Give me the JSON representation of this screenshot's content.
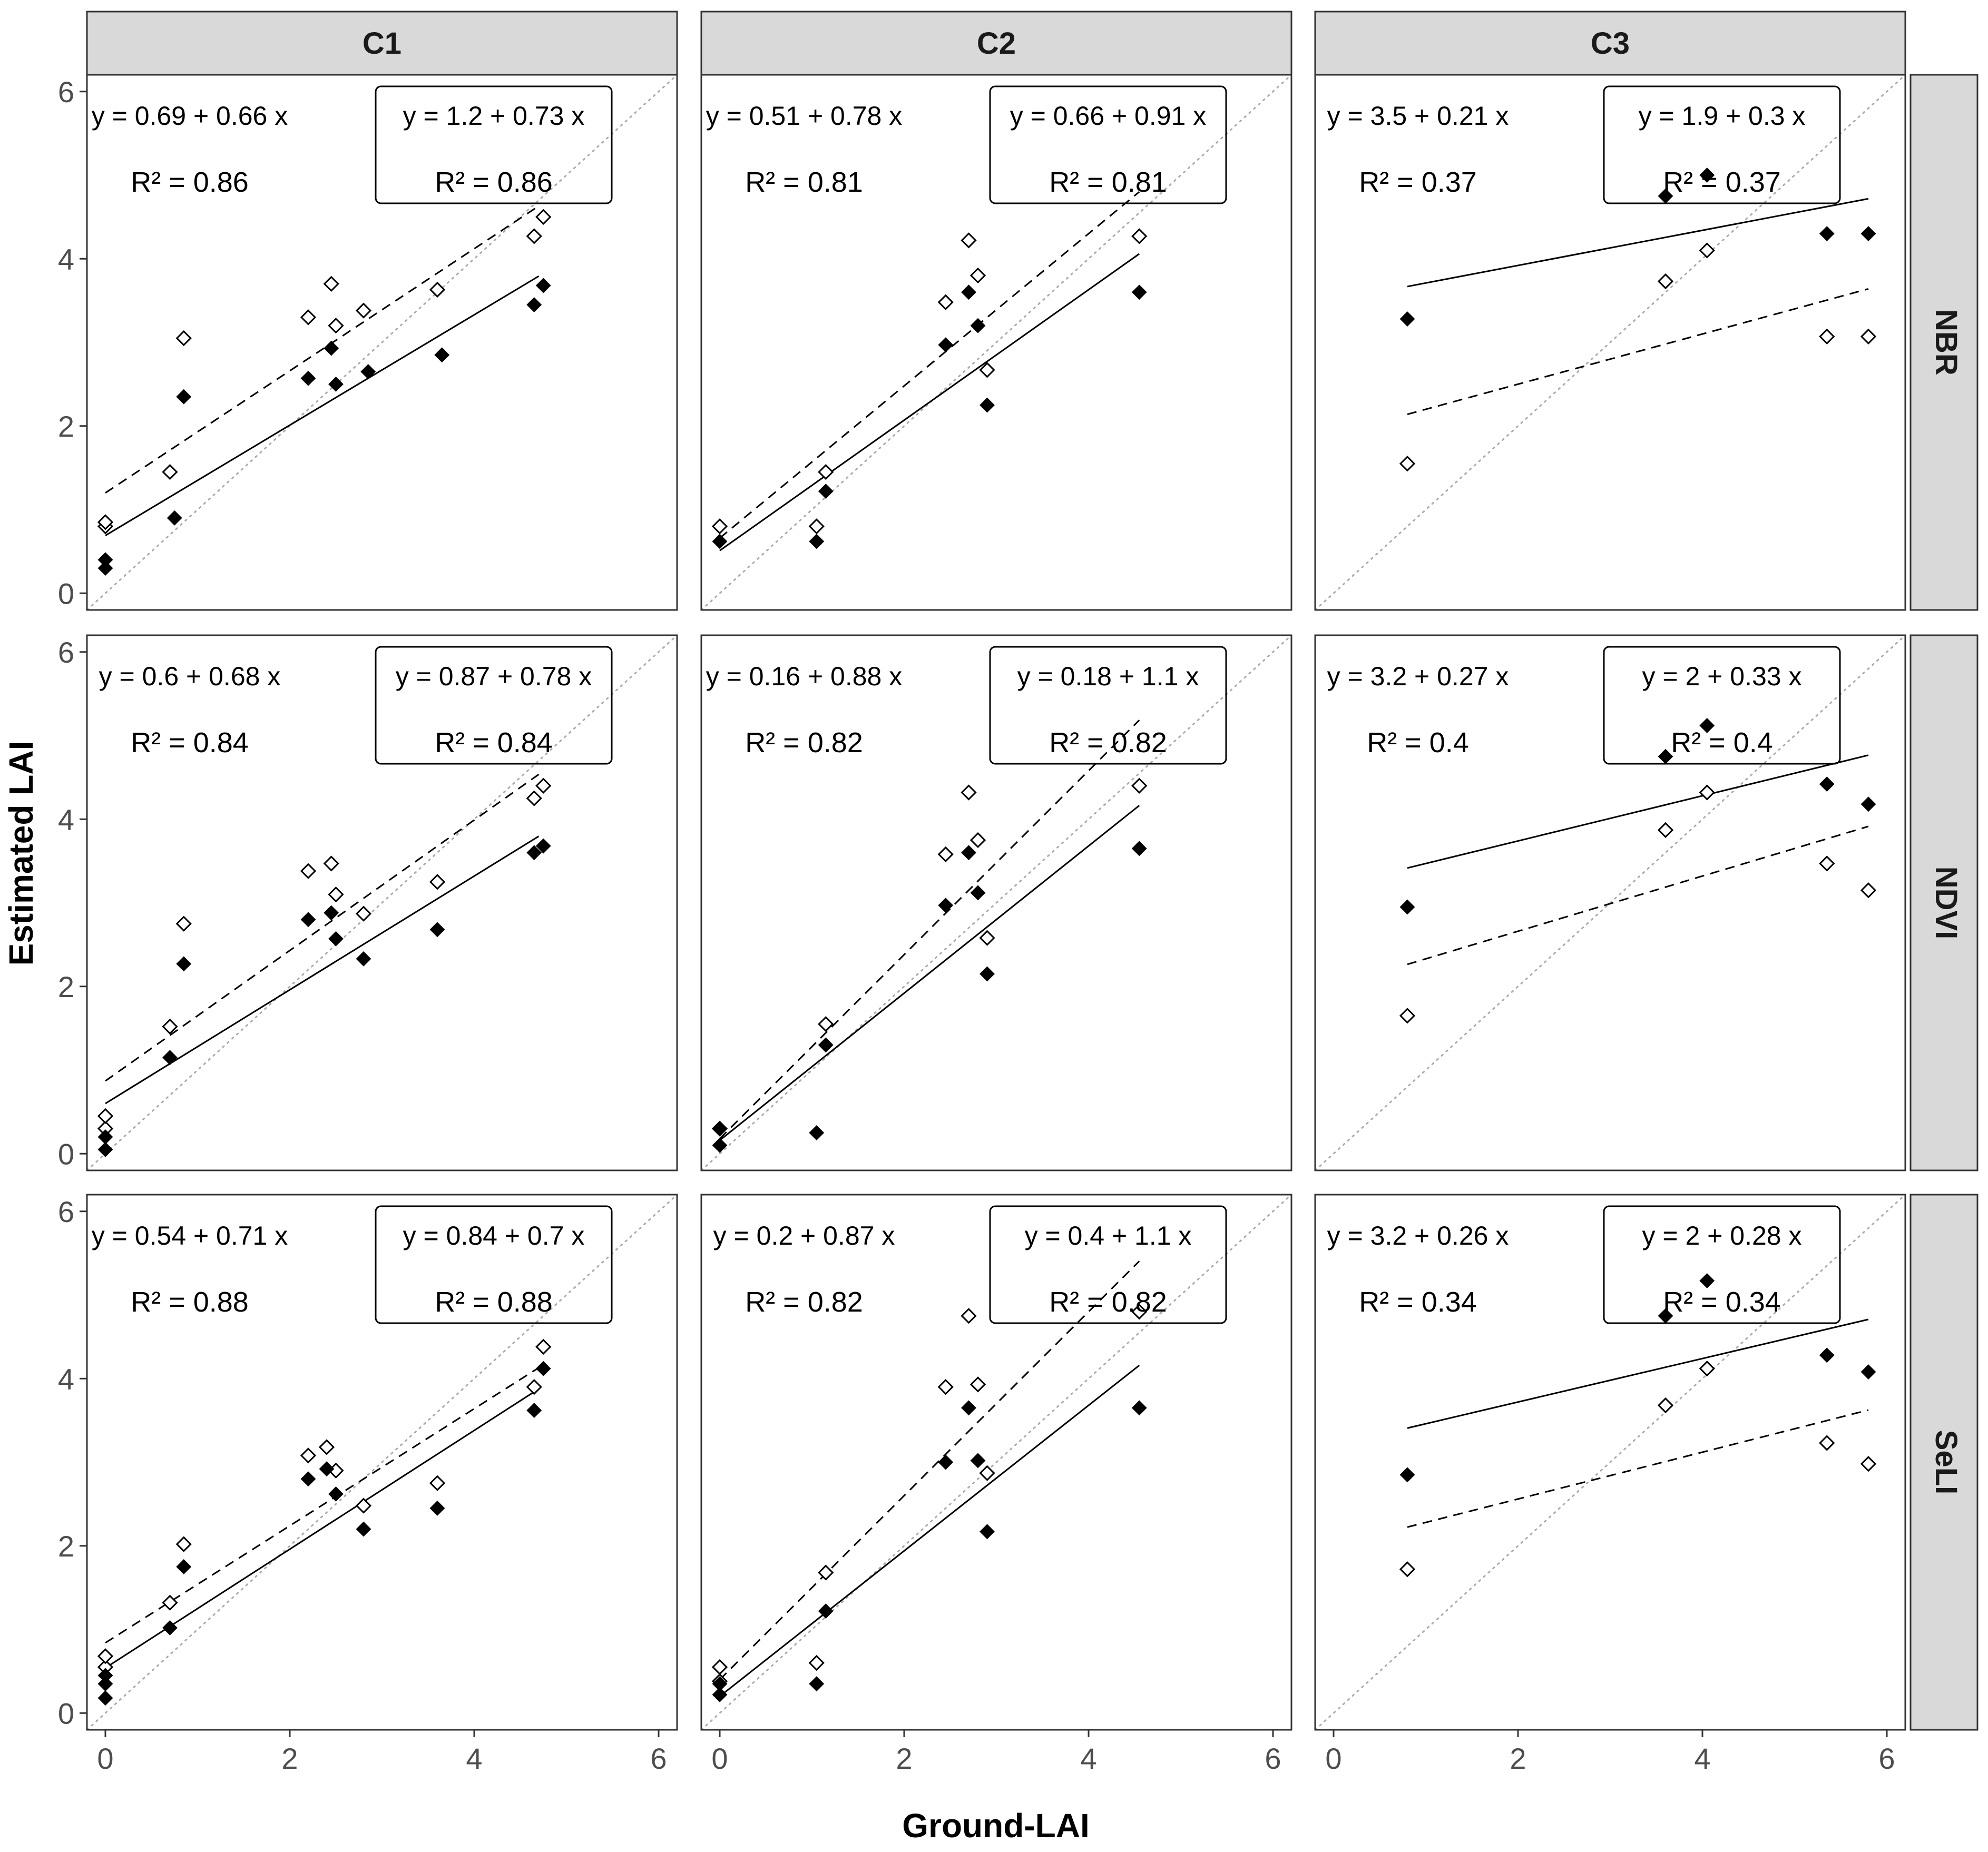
{
  "chart_data": {
    "type": "scatter",
    "title": "",
    "xlabel": "Ground-LAI",
    "ylabel": "Estimated LAI",
    "xlim": [
      -0.2,
      6.2
    ],
    "ylim": [
      -0.2,
      6.2
    ],
    "x_ticks": [
      "0",
      "2",
      "4",
      "6"
    ],
    "y_ticks": [
      "0",
      "2",
      "4",
      "6"
    ],
    "columns": [
      "C1",
      "C2",
      "C3"
    ],
    "rows": [
      "NBR",
      "NDVI",
      "SeLI"
    ],
    "reference_line": "1:1 (dotted)",
    "series_legend": [
      {
        "name": "filled markers",
        "line": "solid"
      },
      {
        "name": "open markers",
        "line": "dashed"
      }
    ],
    "panels": [
      {
        "col": "C1",
        "row": "NBR",
        "filled": {
          "eq": "y = 0.69 + 0.66 x",
          "r2": "0.86",
          "intercept": 0.69,
          "slope": 0.66,
          "xrange": [
            0,
            4.7
          ],
          "points": [
            [
              0,
              0.3
            ],
            [
              0,
              0.4
            ],
            [
              0.75,
              0.9
            ],
            [
              0.85,
              2.35
            ],
            [
              2.2,
              2.57
            ],
            [
              2.45,
              2.93
            ],
            [
              2.5,
              2.5
            ],
            [
              2.85,
              2.65
            ],
            [
              3.65,
              2.85
            ],
            [
              4.65,
              3.45
            ],
            [
              4.75,
              3.68
            ]
          ]
        },
        "open": {
          "eq": "y = 1.2 + 0.73 x",
          "r2": "0.86",
          "intercept": 1.2,
          "slope": 0.73,
          "xrange": [
            0,
            4.7
          ],
          "points": [
            [
              0,
              0.8
            ],
            [
              0,
              0.85
            ],
            [
              0.7,
              1.45
            ],
            [
              0.85,
              3.05
            ],
            [
              2.2,
              3.3
            ],
            [
              2.45,
              3.7
            ],
            [
              2.5,
              3.2
            ],
            [
              2.8,
              3.38
            ],
            [
              3.6,
              3.63
            ],
            [
              4.65,
              4.27
            ],
            [
              4.75,
              4.5
            ]
          ]
        }
      },
      {
        "col": "C2",
        "row": "NBR",
        "filled": {
          "eq": "y = 0.51 + 0.78 x",
          "r2": "0.81",
          "intercept": 0.51,
          "slope": 0.78,
          "xrange": [
            0,
            4.55
          ],
          "points": [
            [
              0,
              0.62
            ],
            [
              1.05,
              0.62
            ],
            [
              1.15,
              1.22
            ],
            [
              2.45,
              2.97
            ],
            [
              2.7,
              3.6
            ],
            [
              2.8,
              3.2
            ],
            [
              2.9,
              2.25
            ],
            [
              4.55,
              3.6
            ]
          ]
        },
        "open": {
          "eq": "y = 0.66 + 0.91 x",
          "r2": "0.81",
          "intercept": 0.66,
          "slope": 0.91,
          "xrange": [
            0,
            4.55
          ],
          "points": [
            [
              0,
              0.8
            ],
            [
              1.05,
              0.8
            ],
            [
              1.15,
              1.45
            ],
            [
              2.45,
              3.48
            ],
            [
              2.7,
              4.22
            ],
            [
              2.8,
              3.8
            ],
            [
              2.9,
              2.67
            ],
            [
              4.55,
              4.27
            ]
          ]
        }
      },
      {
        "col": "C3",
        "row": "NBR",
        "filled": {
          "eq": "y = 3.5 + 0.21 x",
          "r2": "0.37",
          "intercept": 3.5,
          "slope": 0.21,
          "xrange": [
            0.8,
            5.8
          ],
          "points": [
            [
              0.8,
              3.28
            ],
            [
              3.6,
              4.75
            ],
            [
              4.05,
              5.0
            ],
            [
              5.35,
              4.3
            ],
            [
              5.8,
              4.3
            ]
          ]
        },
        "open": {
          "eq": "y = 1.9 + 0.3 x",
          "r2": "0.37",
          "intercept": 1.9,
          "slope": 0.3,
          "xrange": [
            0.8,
            5.8
          ],
          "points": [
            [
              0.8,
              1.55
            ],
            [
              3.6,
              3.73
            ],
            [
              4.05,
              4.1
            ],
            [
              5.35,
              3.07
            ],
            [
              5.8,
              3.07
            ]
          ]
        }
      },
      {
        "col": "C1",
        "row": "NDVI",
        "filled": {
          "eq": "y = 0.6 + 0.68 x",
          "r2": "0.84",
          "intercept": 0.6,
          "slope": 0.68,
          "xrange": [
            0,
            4.7
          ],
          "points": [
            [
              0,
              0.05
            ],
            [
              0,
              0.2
            ],
            [
              0.7,
              1.15
            ],
            [
              0.85,
              2.27
            ],
            [
              2.2,
              2.8
            ],
            [
              2.45,
              2.88
            ],
            [
              2.5,
              2.57
            ],
            [
              2.8,
              2.33
            ],
            [
              3.6,
              2.68
            ],
            [
              4.65,
              3.6
            ],
            [
              4.75,
              3.68
            ]
          ]
        },
        "open": {
          "eq": "y = 0.87 + 0.78 x",
          "r2": "0.84",
          "intercept": 0.87,
          "slope": 0.78,
          "xrange": [
            0,
            4.7
          ],
          "points": [
            [
              0,
              0.3
            ],
            [
              0,
              0.45
            ],
            [
              0.7,
              1.52
            ],
            [
              0.85,
              2.75
            ],
            [
              2.2,
              3.38
            ],
            [
              2.45,
              3.47
            ],
            [
              2.5,
              3.1
            ],
            [
              2.8,
              2.87
            ],
            [
              3.6,
              3.25
            ],
            [
              4.65,
              4.25
            ],
            [
              4.75,
              4.4
            ]
          ]
        }
      },
      {
        "col": "C2",
        "row": "NDVI",
        "filled": {
          "eq": "y = 0.16 + 0.88 x",
          "r2": "0.82",
          "intercept": 0.16,
          "slope": 0.88,
          "xrange": [
            0,
            4.55
          ],
          "points": [
            [
              0,
              0.1
            ],
            [
              0,
              0.3
            ],
            [
              1.05,
              0.25
            ],
            [
              1.15,
              1.3
            ],
            [
              2.45,
              2.97
            ],
            [
              2.7,
              3.6
            ],
            [
              2.8,
              3.12
            ],
            [
              2.9,
              2.15
            ],
            [
              4.55,
              3.65
            ]
          ]
        },
        "open": {
          "eq": "y = 0.18 + 1.1 x",
          "r2": "0.82",
          "intercept": 0.18,
          "slope": 1.1,
          "xrange": [
            0,
            4.55
          ],
          "points": [
            [
              0,
              0.3
            ],
            [
              1.15,
              1.55
            ],
            [
              2.45,
              3.58
            ],
            [
              2.7,
              4.32
            ],
            [
              2.8,
              3.75
            ],
            [
              2.9,
              2.58
            ],
            [
              4.55,
              4.4
            ]
          ]
        }
      },
      {
        "col": "C3",
        "row": "NDVI",
        "filled": {
          "eq": "y = 3.2 + 0.27 x",
          "r2": "0.4",
          "intercept": 3.2,
          "slope": 0.27,
          "xrange": [
            0.8,
            5.8
          ],
          "points": [
            [
              0.8,
              2.95
            ],
            [
              3.6,
              4.75
            ],
            [
              4.05,
              5.12
            ],
            [
              5.35,
              4.42
            ],
            [
              5.8,
              4.18
            ]
          ]
        },
        "open": {
          "eq": "y = 2 + 0.33 x",
          "r2": "0.4",
          "intercept": 2.0,
          "slope": 0.33,
          "xrange": [
            0.8,
            5.8
          ],
          "points": [
            [
              0.8,
              1.65
            ],
            [
              3.6,
              3.87
            ],
            [
              4.05,
              4.32
            ],
            [
              5.35,
              3.47
            ],
            [
              5.8,
              3.15
            ]
          ]
        }
      },
      {
        "col": "C1",
        "row": "SeLI",
        "filled": {
          "eq": "y = 0.54 + 0.71 x",
          "r2": "0.88",
          "intercept": 0.54,
          "slope": 0.71,
          "xrange": [
            0,
            4.7
          ],
          "points": [
            [
              0,
              0.18
            ],
            [
              0,
              0.35
            ],
            [
              0,
              0.45
            ],
            [
              0.7,
              1.02
            ],
            [
              0.85,
              1.75
            ],
            [
              2.2,
              2.8
            ],
            [
              2.4,
              2.92
            ],
            [
              2.5,
              2.62
            ],
            [
              2.8,
              2.2
            ],
            [
              3.6,
              2.45
            ],
            [
              4.65,
              3.62
            ],
            [
              4.75,
              4.12
            ]
          ]
        },
        "open": {
          "eq": "y = 0.84 + 0.7 x",
          "r2": "0.88",
          "intercept": 0.84,
          "slope": 0.7,
          "xrange": [
            0,
            4.7
          ],
          "points": [
            [
              0,
              0.55
            ],
            [
              0,
              0.68
            ],
            [
              0.7,
              1.32
            ],
            [
              0.85,
              2.02
            ],
            [
              2.2,
              3.08
            ],
            [
              2.4,
              3.18
            ],
            [
              2.5,
              2.9
            ],
            [
              2.8,
              2.48
            ],
            [
              3.6,
              2.75
            ],
            [
              4.65,
              3.9
            ],
            [
              4.75,
              4.38
            ]
          ]
        }
      },
      {
        "col": "C2",
        "row": "SeLI",
        "filled": {
          "eq": "y = 0.2 + 0.87 x",
          "r2": "0.82",
          "intercept": 0.2,
          "slope": 0.87,
          "xrange": [
            0,
            4.55
          ],
          "points": [
            [
              0,
              0.22
            ],
            [
              0,
              0.35
            ],
            [
              1.05,
              0.35
            ],
            [
              1.15,
              1.22
            ],
            [
              2.45,
              3.0
            ],
            [
              2.7,
              3.65
            ],
            [
              2.8,
              3.02
            ],
            [
              2.9,
              2.17
            ],
            [
              4.55,
              3.65
            ]
          ]
        },
        "open": {
          "eq": "y = 0.4 + 1.1 x",
          "r2": "0.82",
          "intercept": 0.4,
          "slope": 1.1,
          "xrange": [
            0,
            4.55
          ],
          "points": [
            [
              0,
              0.38
            ],
            [
              0,
              0.55
            ],
            [
              1.05,
              0.6
            ],
            [
              1.15,
              1.68
            ],
            [
              2.45,
              3.9
            ],
            [
              2.7,
              4.75
            ],
            [
              2.8,
              3.93
            ],
            [
              2.9,
              2.87
            ],
            [
              4.55,
              4.8
            ]
          ]
        }
      },
      {
        "col": "C3",
        "row": "SeLI",
        "filled": {
          "eq": "y = 3.2 + 0.26 x",
          "r2": "0.34",
          "intercept": 3.2,
          "slope": 0.26,
          "xrange": [
            0.8,
            5.8
          ],
          "points": [
            [
              0.8,
              2.85
            ],
            [
              3.6,
              4.75
            ],
            [
              4.05,
              5.17
            ],
            [
              5.35,
              4.28
            ],
            [
              5.8,
              4.08
            ]
          ]
        },
        "open": {
          "eq": "y = 2 + 0.28 x",
          "r2": "0.34",
          "intercept": 2.0,
          "slope": 0.28,
          "xrange": [
            0.8,
            5.8
          ],
          "points": [
            [
              0.8,
              1.72
            ],
            [
              3.6,
              3.68
            ],
            [
              4.05,
              4.12
            ],
            [
              5.35,
              3.23
            ],
            [
              5.8,
              2.98
            ]
          ]
        }
      }
    ]
  },
  "colors": {
    "strip_bg": "#d9d9d9",
    "panel_border": "#333333",
    "marker": "#000000",
    "reference": "#aaaaaa"
  }
}
